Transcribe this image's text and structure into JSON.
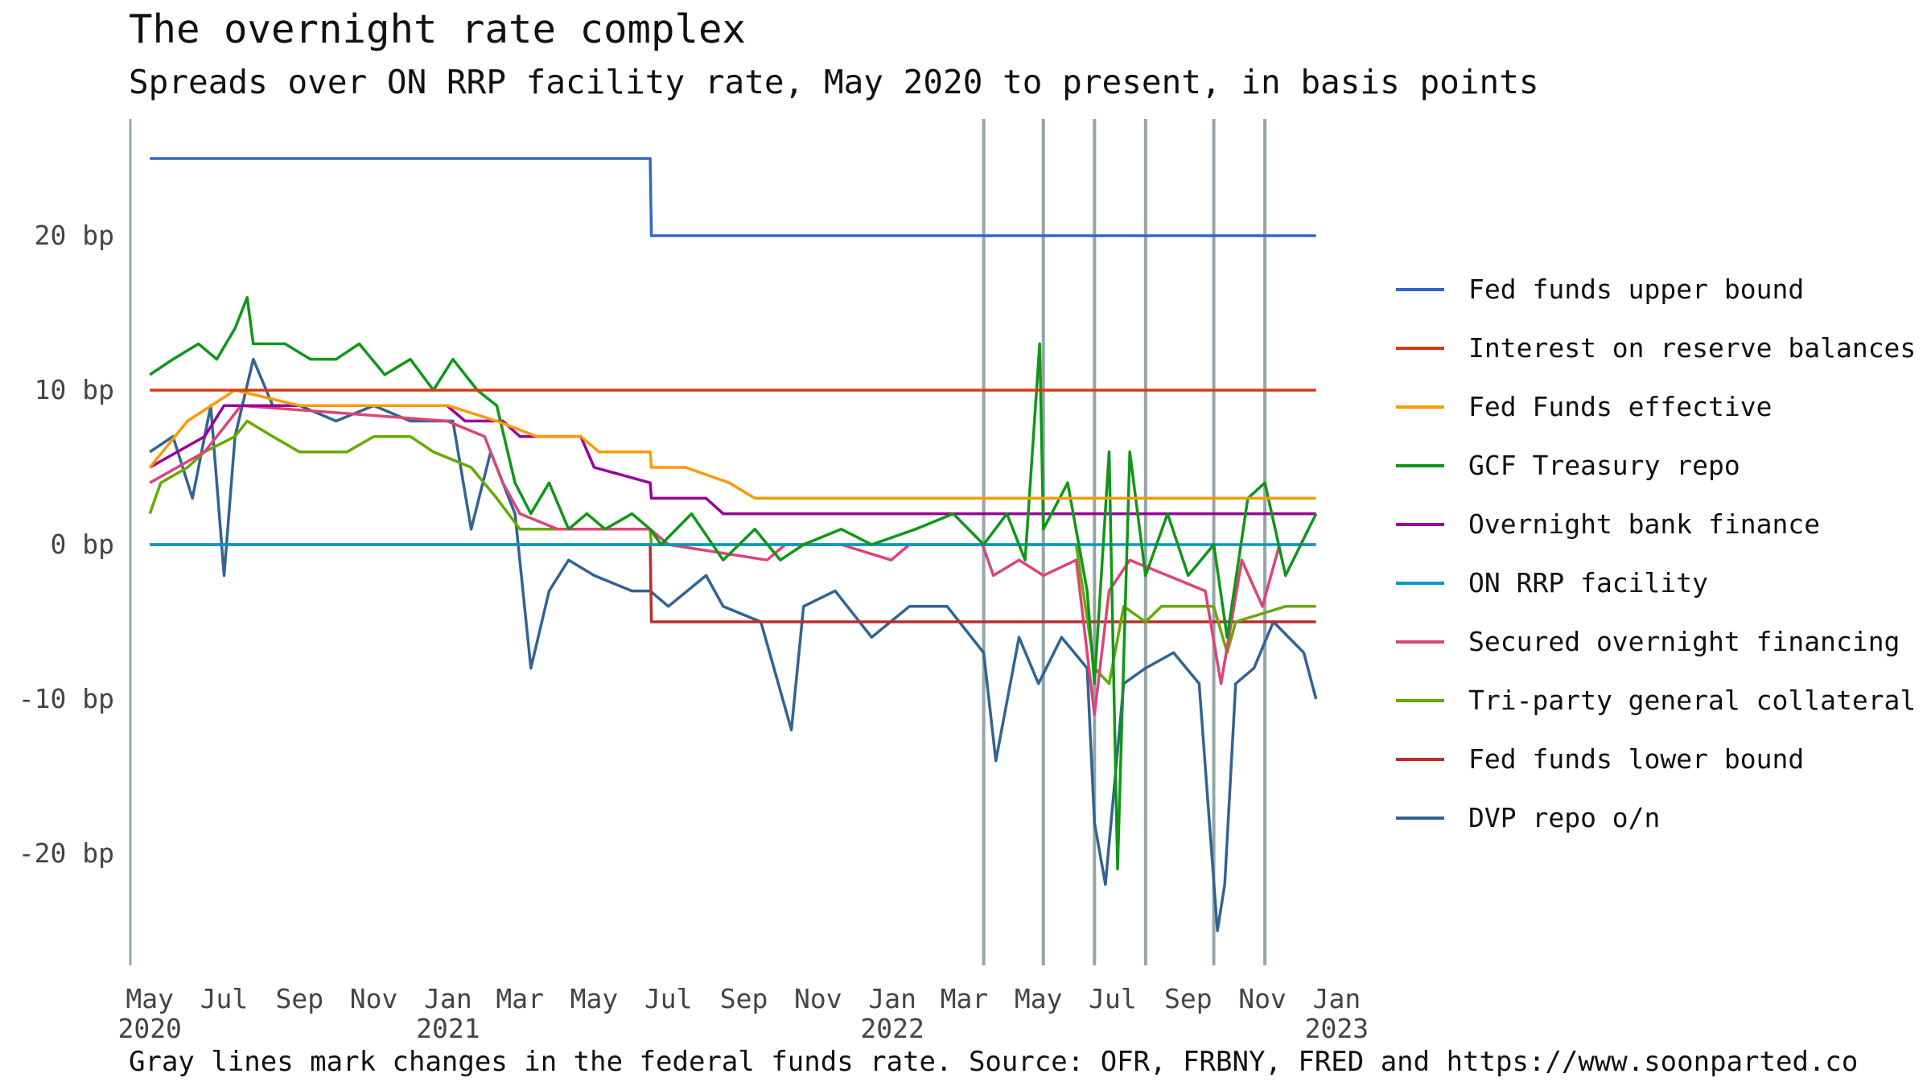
{
  "header": {
    "title": "The overnight rate complex",
    "subtitle": "Spreads over ON RRP facility rate, May 2020 to present, in basis points"
  },
  "footer": {
    "note": "Gray lines mark changes in the federal funds rate. Source: OFR, FRBNY, FRED and https://www.soonparted.co"
  },
  "chart_data": {
    "type": "line",
    "title": "The overnight rate complex",
    "subtitle": "Spreads over ON RRP facility rate, May 2020 to present, in basis points",
    "x_type": "date",
    "x_range": [
      "2020-04-15",
      "2023-01-10"
    ],
    "ylim": [
      -27,
      27
    ],
    "y_ticks": [
      {
        "value": 20,
        "label": "20 bp"
      },
      {
        "value": 10,
        "label": "10 bp"
      },
      {
        "value": 0,
        "label": "0 bp"
      },
      {
        "value": -10,
        "label": "-10 bp"
      },
      {
        "value": -20,
        "label": "-20 bp"
      }
    ],
    "x_ticks": [
      {
        "date": "2020-05-01",
        "label": "May",
        "year": "2020"
      },
      {
        "date": "2020-07-01",
        "label": "Jul",
        "year": ""
      },
      {
        "date": "2020-09-01",
        "label": "Sep",
        "year": ""
      },
      {
        "date": "2020-11-01",
        "label": "Nov",
        "year": ""
      },
      {
        "date": "2021-01-01",
        "label": "Jan",
        "year": "2021"
      },
      {
        "date": "2021-03-01",
        "label": "Mar",
        "year": ""
      },
      {
        "date": "2021-05-01",
        "label": "May",
        "year": ""
      },
      {
        "date": "2021-07-01",
        "label": "Jul",
        "year": ""
      },
      {
        "date": "2021-09-01",
        "label": "Sep",
        "year": ""
      },
      {
        "date": "2021-11-01",
        "label": "Nov",
        "year": ""
      },
      {
        "date": "2022-01-01",
        "label": "Jan",
        "year": "2022"
      },
      {
        "date": "2022-03-01",
        "label": "Mar",
        "year": ""
      },
      {
        "date": "2022-05-01",
        "label": "May",
        "year": ""
      },
      {
        "date": "2022-07-01",
        "label": "Jul",
        "year": ""
      },
      {
        "date": "2022-09-01",
        "label": "Sep",
        "year": ""
      },
      {
        "date": "2022-11-01",
        "label": "Nov",
        "year": ""
      },
      {
        "date": "2023-01-01",
        "label": "Jan",
        "year": "2023"
      }
    ],
    "rate_change_dates": [
      "2022-03-17",
      "2022-05-05",
      "2022-06-16",
      "2022-07-28",
      "2022-09-22",
      "2022-11-03"
    ],
    "legend_position": "right",
    "grid": false,
    "series": [
      {
        "name": "Fed funds upper bound",
        "color": "#3366cc",
        "points": [
          [
            "2020-05-01",
            25
          ],
          [
            "2021-06-16",
            25
          ],
          [
            "2021-06-17",
            20
          ],
          [
            "2022-12-15",
            20
          ]
        ]
      },
      {
        "name": "Interest on reserve balances",
        "color": "#dc3912",
        "points": [
          [
            "2020-05-01",
            10
          ],
          [
            "2022-12-15",
            10
          ]
        ]
      },
      {
        "name": "Fed Funds effective",
        "color": "#ff9900",
        "points": [
          [
            "2020-05-01",
            5
          ],
          [
            "2020-06-01",
            8
          ],
          [
            "2020-07-10",
            10
          ],
          [
            "2020-09-01",
            9
          ],
          [
            "2020-11-01",
            9
          ],
          [
            "2021-01-01",
            9
          ],
          [
            "2021-02-10",
            8
          ],
          [
            "2021-03-15",
            7
          ],
          [
            "2021-04-20",
            7
          ],
          [
            "2021-05-05",
            6
          ],
          [
            "2021-06-16",
            6
          ],
          [
            "2021-06-17",
            5
          ],
          [
            "2021-07-15",
            5
          ],
          [
            "2021-08-20",
            4
          ],
          [
            "2021-09-10",
            3
          ],
          [
            "2022-03-16",
            3
          ],
          [
            "2022-12-15",
            3
          ]
        ]
      },
      {
        "name": "GCF Treasury repo",
        "color": "#109618",
        "points": [
          [
            "2020-05-01",
            11
          ],
          [
            "2020-05-20",
            12
          ],
          [
            "2020-06-10",
            13
          ],
          [
            "2020-06-25",
            12
          ],
          [
            "2020-07-10",
            14
          ],
          [
            "2020-07-20",
            16
          ],
          [
            "2020-07-25",
            13
          ],
          [
            "2020-08-20",
            13
          ],
          [
            "2020-09-10",
            12
          ],
          [
            "2020-10-01",
            12
          ],
          [
            "2020-10-20",
            13
          ],
          [
            "2020-11-10",
            11
          ],
          [
            "2020-12-01",
            12
          ],
          [
            "2020-12-20",
            10
          ],
          [
            "2021-01-05",
            12
          ],
          [
            "2021-01-25",
            10
          ],
          [
            "2021-02-10",
            9
          ],
          [
            "2021-02-25",
            4
          ],
          [
            "2021-03-10",
            2
          ],
          [
            "2021-03-25",
            4
          ],
          [
            "2021-04-10",
            1
          ],
          [
            "2021-04-25",
            2
          ],
          [
            "2021-05-10",
            1
          ],
          [
            "2021-06-01",
            2
          ],
          [
            "2021-06-16",
            1
          ],
          [
            "2021-06-25",
            0
          ],
          [
            "2021-07-20",
            2
          ],
          [
            "2021-08-15",
            -1
          ],
          [
            "2021-09-10",
            1
          ],
          [
            "2021-10-01",
            -1
          ],
          [
            "2021-10-20",
            0
          ],
          [
            "2021-11-20",
            1
          ],
          [
            "2021-12-15",
            0
          ],
          [
            "2022-01-20",
            1
          ],
          [
            "2022-02-20",
            2
          ],
          [
            "2022-03-17",
            0
          ],
          [
            "2022-04-05",
            2
          ],
          [
            "2022-04-20",
            -1
          ],
          [
            "2022-05-02",
            13
          ],
          [
            "2022-05-05",
            1
          ],
          [
            "2022-05-25",
            4
          ],
          [
            "2022-06-10",
            -3
          ],
          [
            "2022-06-16",
            -9
          ],
          [
            "2022-06-28",
            6
          ],
          [
            "2022-07-05",
            -21
          ],
          [
            "2022-07-15",
            6
          ],
          [
            "2022-07-28",
            -2
          ],
          [
            "2022-08-15",
            2
          ],
          [
            "2022-09-01",
            -2
          ],
          [
            "2022-09-22",
            0
          ],
          [
            "2022-10-03",
            -6
          ],
          [
            "2022-10-20",
            3
          ],
          [
            "2022-11-03",
            4
          ],
          [
            "2022-11-20",
            -2
          ],
          [
            "2022-12-15",
            2
          ]
        ]
      },
      {
        "name": "Overnight bank finance",
        "color": "#990099",
        "points": [
          [
            "2020-05-01",
            5
          ],
          [
            "2020-06-15",
            7
          ],
          [
            "2020-07-01",
            9
          ],
          [
            "2020-12-31",
            9
          ],
          [
            "2021-01-15",
            8
          ],
          [
            "2021-02-15",
            8
          ],
          [
            "2021-03-01",
            7
          ],
          [
            "2021-04-20",
            7
          ],
          [
            "2021-05-01",
            5
          ],
          [
            "2021-06-16",
            4
          ],
          [
            "2021-06-17",
            3
          ],
          [
            "2021-08-01",
            3
          ],
          [
            "2021-08-15",
            2
          ],
          [
            "2022-12-15",
            2
          ]
        ]
      },
      {
        "name": "ON RRP facility",
        "color": "#0099c6",
        "points": [
          [
            "2020-05-01",
            0
          ],
          [
            "2022-12-15",
            0
          ]
        ]
      },
      {
        "name": "Secured overnight financing",
        "color": "#dd4477",
        "points": [
          [
            "2020-05-01",
            4
          ],
          [
            "2020-06-15",
            6
          ],
          [
            "2020-07-15",
            9
          ],
          [
            "2020-12-31",
            8
          ],
          [
            "2021-01-31",
            7
          ],
          [
            "2021-02-15",
            4
          ],
          [
            "2021-03-01",
            2
          ],
          [
            "2021-04-01",
            1
          ],
          [
            "2021-06-16",
            1
          ],
          [
            "2021-07-01",
            0
          ],
          [
            "2021-09-20",
            -1
          ],
          [
            "2021-10-05",
            0
          ],
          [
            "2021-11-20",
            0
          ],
          [
            "2021-12-31",
            -1
          ],
          [
            "2022-01-15",
            0
          ],
          [
            "2022-03-16",
            0
          ],
          [
            "2022-03-25",
            -2
          ],
          [
            "2022-04-15",
            -1
          ],
          [
            "2022-05-05",
            -2
          ],
          [
            "2022-06-01",
            -1
          ],
          [
            "2022-06-16",
            -11
          ],
          [
            "2022-06-28",
            -3
          ],
          [
            "2022-07-15",
            -1
          ],
          [
            "2022-08-15",
            -2
          ],
          [
            "2022-09-15",
            -3
          ],
          [
            "2022-09-28",
            -9
          ],
          [
            "2022-10-15",
            -1
          ],
          [
            "2022-11-01",
            -4
          ],
          [
            "2022-11-15",
            0
          ],
          [
            "2022-12-15",
            0
          ]
        ]
      },
      {
        "name": "Tri-party general collateral",
        "color": "#66aa00",
        "points": [
          [
            "2020-05-01",
            2
          ],
          [
            "2020-05-10",
            4
          ],
          [
            "2020-06-01",
            5
          ],
          [
            "2020-06-15",
            6
          ],
          [
            "2020-07-10",
            7
          ],
          [
            "2020-07-20",
            8
          ],
          [
            "2020-08-10",
            7
          ],
          [
            "2020-09-01",
            6
          ],
          [
            "2020-10-10",
            6
          ],
          [
            "2020-11-01",
            7
          ],
          [
            "2020-12-01",
            7
          ],
          [
            "2020-12-20",
            6
          ],
          [
            "2021-01-20",
            5
          ],
          [
            "2021-02-10",
            3
          ],
          [
            "2021-03-01",
            1
          ],
          [
            "2021-06-16",
            1
          ],
          [
            "2021-06-17",
            0
          ],
          [
            "2022-06-01",
            0
          ],
          [
            "2022-06-16",
            -8
          ],
          [
            "2022-06-28",
            -9
          ],
          [
            "2022-07-10",
            -4
          ],
          [
            "2022-07-28",
            -5
          ],
          [
            "2022-08-10",
            -4
          ],
          [
            "2022-09-22",
            -4
          ],
          [
            "2022-10-03",
            -7
          ],
          [
            "2022-10-10",
            -5
          ],
          [
            "2022-11-20",
            -4
          ],
          [
            "2022-12-15",
            -4
          ]
        ]
      },
      {
        "name": "Fed funds lower bound",
        "color": "#b82e2e",
        "points": [
          [
            "2020-05-01",
            0
          ],
          [
            "2021-06-16",
            0
          ],
          [
            "2021-06-17",
            -5
          ],
          [
            "2022-12-15",
            -5
          ]
        ]
      },
      {
        "name": "DVP repo o/n",
        "color": "#316395",
        "points": [
          [
            "2020-05-01",
            6
          ],
          [
            "2020-05-20",
            7
          ],
          [
            "2020-06-05",
            3
          ],
          [
            "2020-06-20",
            9
          ],
          [
            "2020-07-01",
            -2
          ],
          [
            "2020-07-10",
            7
          ],
          [
            "2020-07-25",
            12
          ],
          [
            "2020-08-10",
            9
          ],
          [
            "2020-09-01",
            9
          ],
          [
            "2020-10-01",
            8
          ],
          [
            "2020-11-01",
            9
          ],
          [
            "2020-12-01",
            8
          ],
          [
            "2021-01-05",
            8
          ],
          [
            "2021-01-20",
            1
          ],
          [
            "2021-02-05",
            6
          ],
          [
            "2021-02-25",
            2
          ],
          [
            "2021-03-10",
            -8
          ],
          [
            "2021-03-25",
            -3
          ],
          [
            "2021-04-10",
            -1
          ],
          [
            "2021-05-01",
            -2
          ],
          [
            "2021-06-01",
            -3
          ],
          [
            "2021-06-16",
            -3
          ],
          [
            "2021-07-01",
            -4
          ],
          [
            "2021-08-01",
            -2
          ],
          [
            "2021-08-15",
            -4
          ],
          [
            "2021-09-15",
            -5
          ],
          [
            "2021-10-10",
            -12
          ],
          [
            "2021-10-20",
            -4
          ],
          [
            "2021-11-15",
            -3
          ],
          [
            "2021-12-15",
            -6
          ],
          [
            "2022-01-15",
            -4
          ],
          [
            "2022-02-15",
            -4
          ],
          [
            "2022-03-17",
            -7
          ],
          [
            "2022-03-27",
            -14
          ],
          [
            "2022-04-15",
            -6
          ],
          [
            "2022-05-01",
            -9
          ],
          [
            "2022-05-20",
            -6
          ],
          [
            "2022-06-10",
            -8
          ],
          [
            "2022-06-16",
            -18
          ],
          [
            "2022-06-25",
            -22
          ],
          [
            "2022-07-10",
            -9
          ],
          [
            "2022-07-28",
            -8
          ],
          [
            "2022-08-20",
            -7
          ],
          [
            "2022-09-10",
            -9
          ],
          [
            "2022-09-25",
            -25
          ],
          [
            "2022-10-01",
            -22
          ],
          [
            "2022-10-10",
            -9
          ],
          [
            "2022-10-25",
            -8
          ],
          [
            "2022-11-10",
            -5
          ],
          [
            "2022-12-05",
            -7
          ],
          [
            "2022-12-15",
            -10
          ]
        ]
      }
    ]
  }
}
